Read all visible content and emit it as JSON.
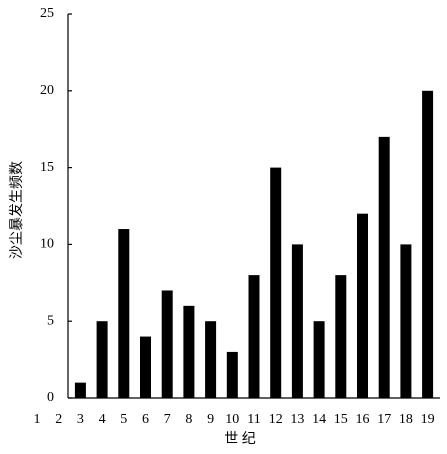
{
  "chart_data": {
    "type": "bar",
    "y_label": "沙尘暴发生频数",
    "x_label": "世 纪",
    "categories": [
      "1",
      "2",
      "3",
      "4",
      "5",
      "6",
      "7",
      "8",
      "9",
      "10",
      "11",
      "12",
      "13",
      "14",
      "15",
      "16",
      "17",
      "18",
      "19"
    ],
    "values": [
      0,
      0,
      1,
      5,
      11,
      4,
      7,
      6,
      5,
      3,
      8,
      15,
      10,
      5,
      8,
      12,
      17,
      10,
      20
    ],
    "color": "#000000",
    "ylim": [
      0,
      25
    ],
    "yticks": [
      0,
      5,
      10,
      15,
      20,
      25
    ],
    "grid": false
  }
}
